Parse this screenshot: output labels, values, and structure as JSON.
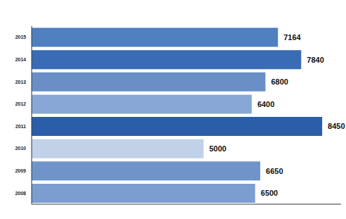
{
  "chart_data": {
    "type": "bar",
    "orientation": "horizontal",
    "categories": [
      "2008",
      "2009",
      "2010",
      "2011",
      "2012",
      "2013",
      "2014",
      "2015"
    ],
    "values": [
      6500,
      6650,
      5000,
      8450,
      6400,
      6800,
      7840,
      7164
    ],
    "colors": [
      "#7b9dd0",
      "#6f94ca",
      "#c0d1e8",
      "#2a5ea8",
      "#88a7d6",
      "#6a8fc7",
      "#3a6cb5",
      "#4f7fbf"
    ],
    "xlim": [
      0,
      9000
    ],
    "tick_labels": "y",
    "data_labels": true,
    "grid": false
  }
}
